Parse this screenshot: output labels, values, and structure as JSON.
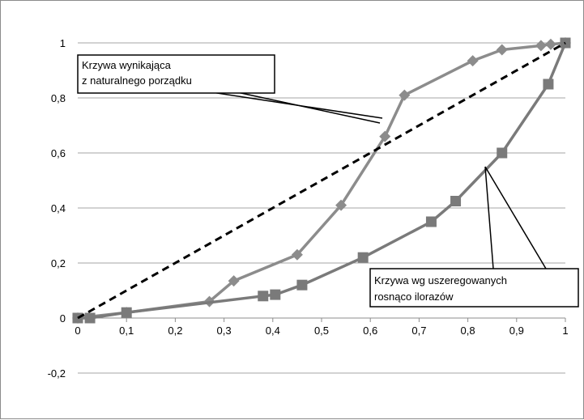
{
  "chart_data": {
    "type": "line",
    "title": "",
    "xlabel": "",
    "ylabel": "",
    "xlim": [
      0,
      1
    ],
    "ylim": [
      -0.2,
      1
    ],
    "x_ticks": [
      "0",
      "0,1",
      "0,2",
      "0,3",
      "0,4",
      "0,5",
      "0,6",
      "0,7",
      "0,8",
      "0,9",
      "1"
    ],
    "y_ticks": [
      "-0,2",
      "0",
      "0,2",
      "0,4",
      "0,6",
      "0,8",
      "1"
    ],
    "grid": "horizontal",
    "series": [
      {
        "name": "",
        "style": "diamond",
        "color": "#8c8c8c",
        "x": [
          0,
          0.1,
          0.27,
          0.32,
          0.45,
          0.54,
          0.63,
          0.67,
          0.81,
          0.87,
          0.95,
          0.97,
          1.0
        ],
        "y": [
          0,
          0.02,
          0.06,
          0.135,
          0.23,
          0.41,
          0.66,
          0.81,
          0.935,
          0.975,
          0.99,
          0.995,
          1.0
        ]
      },
      {
        "name": "",
        "style": "square",
        "color": "#7a7a7a",
        "x": [
          0,
          0.025,
          0.1,
          0.38,
          0.405,
          0.46,
          0.585,
          0.725,
          0.775,
          0.87,
          0.965,
          1.0
        ],
        "y": [
          0,
          0,
          0.02,
          0.08,
          0.085,
          0.12,
          0.22,
          0.35,
          0.425,
          0.6,
          0.85,
          1.0
        ]
      },
      {
        "name": "",
        "style": "dashed",
        "color": "#000000",
        "x": [
          0,
          1
        ],
        "y": [
          0,
          1
        ]
      }
    ],
    "annotations": [
      {
        "lines": [
          "Krzywa wynikająca",
          "z naturalnego porządku"
        ],
        "target": "diamond"
      },
      {
        "lines": [
          "Krzywa wg uszeregowanych",
          " rosnąco ilorazów"
        ],
        "target": "square"
      }
    ]
  }
}
